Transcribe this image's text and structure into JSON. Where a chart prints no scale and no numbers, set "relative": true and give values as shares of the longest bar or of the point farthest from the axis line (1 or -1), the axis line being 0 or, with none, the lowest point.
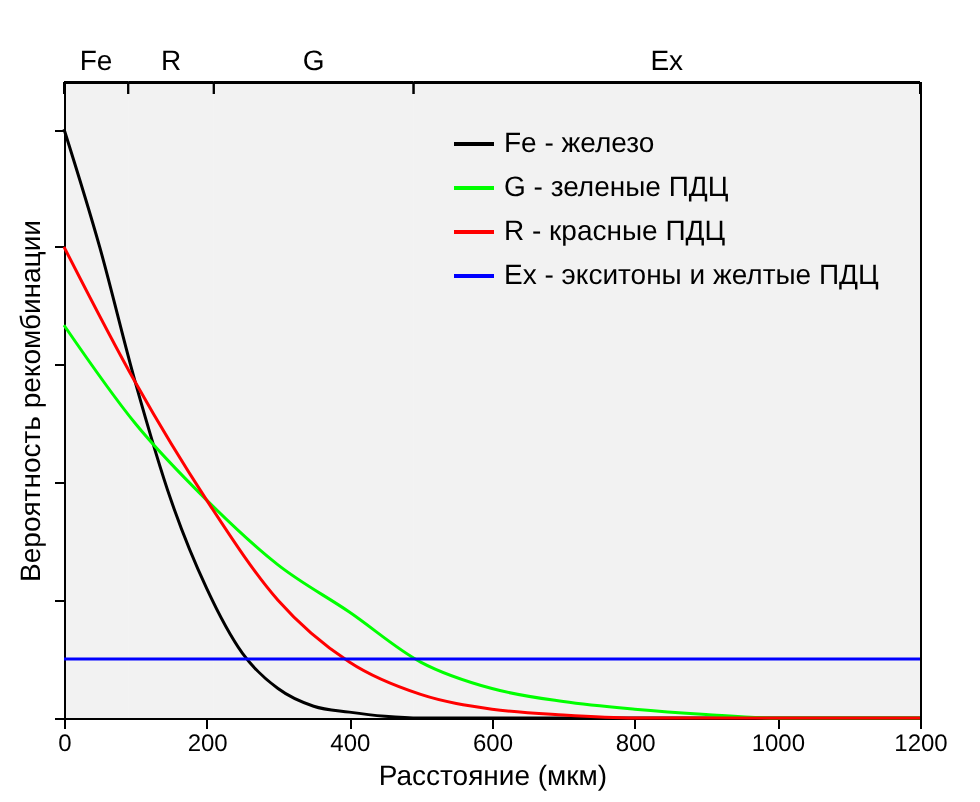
{
  "chart_data": {
    "type": "line",
    "relative": true,
    "xlabel": "Расстояние (мкм)",
    "ylabel": "Вероятность рекомбинации",
    "xlim": [
      0,
      1200
    ],
    "xticks": [
      0,
      200,
      400,
      600,
      800,
      1000,
      1200
    ],
    "grid": false,
    "legend": "top right",
    "marker": "none",
    "line_style": "solid",
    "series": [
      {
        "name": "Fe - железо",
        "color": "#000000",
        "x": [
          0,
          50,
          100,
          150,
          200,
          250,
          300,
          350,
          400,
          450,
          500,
          600,
          1200
        ],
        "values": [
          1,
          0.8,
          0.57,
          0.37,
          0.22,
          0.11,
          0.05,
          0.02,
          0.01,
          0.003,
          0,
          0,
          0
        ]
      },
      {
        "name": "G - зеленые ПДЦ",
        "color": "#00ff00",
        "x": [
          0,
          100,
          200,
          300,
          400,
          500,
          600,
          700,
          800,
          900,
          1000,
          1200
        ],
        "values": [
          0.667,
          0.5,
          0.37,
          0.26,
          0.18,
          0.095,
          0.05,
          0.028,
          0.015,
          0.006,
          0,
          0
        ]
      },
      {
        "name": "R - красные ПДЦ",
        "color": "#ff0000",
        "x": [
          0,
          100,
          200,
          300,
          400,
          500,
          600,
          700,
          800,
          1200
        ],
        "values": [
          0.8,
          0.57,
          0.37,
          0.2,
          0.095,
          0.04,
          0.015,
          0.005,
          0,
          0
        ]
      },
      {
        "name": "Ex - экситоны и желтые ПДЦ",
        "color": "#0000ff",
        "x": [
          0,
          1200
        ],
        "values": [
          0.1,
          0.1
        ]
      }
    ],
    "bands": [
      {
        "axis": "x",
        "from": 0,
        "to": 90,
        "label": "Fe"
      },
      {
        "axis": "x",
        "from": 90,
        "to": 210,
        "label": "R"
      },
      {
        "axis": "x",
        "from": 210,
        "to": 490,
        "label": "G"
      },
      {
        "axis": "x",
        "from": 490,
        "to": 1200,
        "label": "Ex"
      }
    ]
  }
}
